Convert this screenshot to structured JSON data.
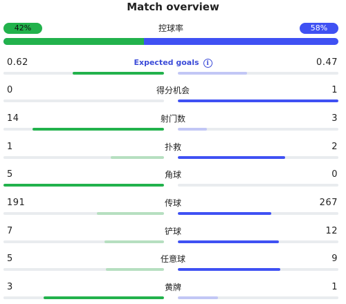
{
  "title": "Match overview",
  "possession": {
    "label": "控球率",
    "home_text": "42%",
    "away_text": "58%",
    "home_pct": 42,
    "away_pct": 58,
    "home_color": "#22b24c",
    "away_color": "#3f51f3"
  },
  "stats": [
    {
      "label": "Expected goals",
      "home": "0.62",
      "away": "0.47",
      "home_ratio": 0.57,
      "away_ratio": 0.43,
      "winner": "home",
      "has_info_icon": true
    },
    {
      "label": "得分机会",
      "home": "0",
      "away": "1",
      "home_ratio": 0.0,
      "away_ratio": 1.0,
      "winner": "away"
    },
    {
      "label": "射门数",
      "home": "14",
      "away": "3",
      "home_ratio": 0.82,
      "away_ratio": 0.18,
      "winner": "home"
    },
    {
      "label": "扑救",
      "home": "1",
      "away": "2",
      "home_ratio": 0.33,
      "away_ratio": 0.67,
      "winner": "away"
    },
    {
      "label": "角球",
      "home": "5",
      "away": "0",
      "home_ratio": 1.0,
      "away_ratio": 0.0,
      "winner": "home"
    },
    {
      "label": "传球",
      "home": "191",
      "away": "267",
      "home_ratio": 0.42,
      "away_ratio": 0.58,
      "winner": "away"
    },
    {
      "label": "铲球",
      "home": "7",
      "away": "12",
      "home_ratio": 0.37,
      "away_ratio": 0.63,
      "winner": "away"
    },
    {
      "label": "任意球",
      "home": "5",
      "away": "9",
      "home_ratio": 0.36,
      "away_ratio": 0.64,
      "winner": "away"
    },
    {
      "label": "黄牌",
      "home": "3",
      "away": "1",
      "home_ratio": 0.75,
      "away_ratio": 0.25,
      "winner": "home"
    }
  ],
  "icons": {
    "info": "info-icon"
  }
}
